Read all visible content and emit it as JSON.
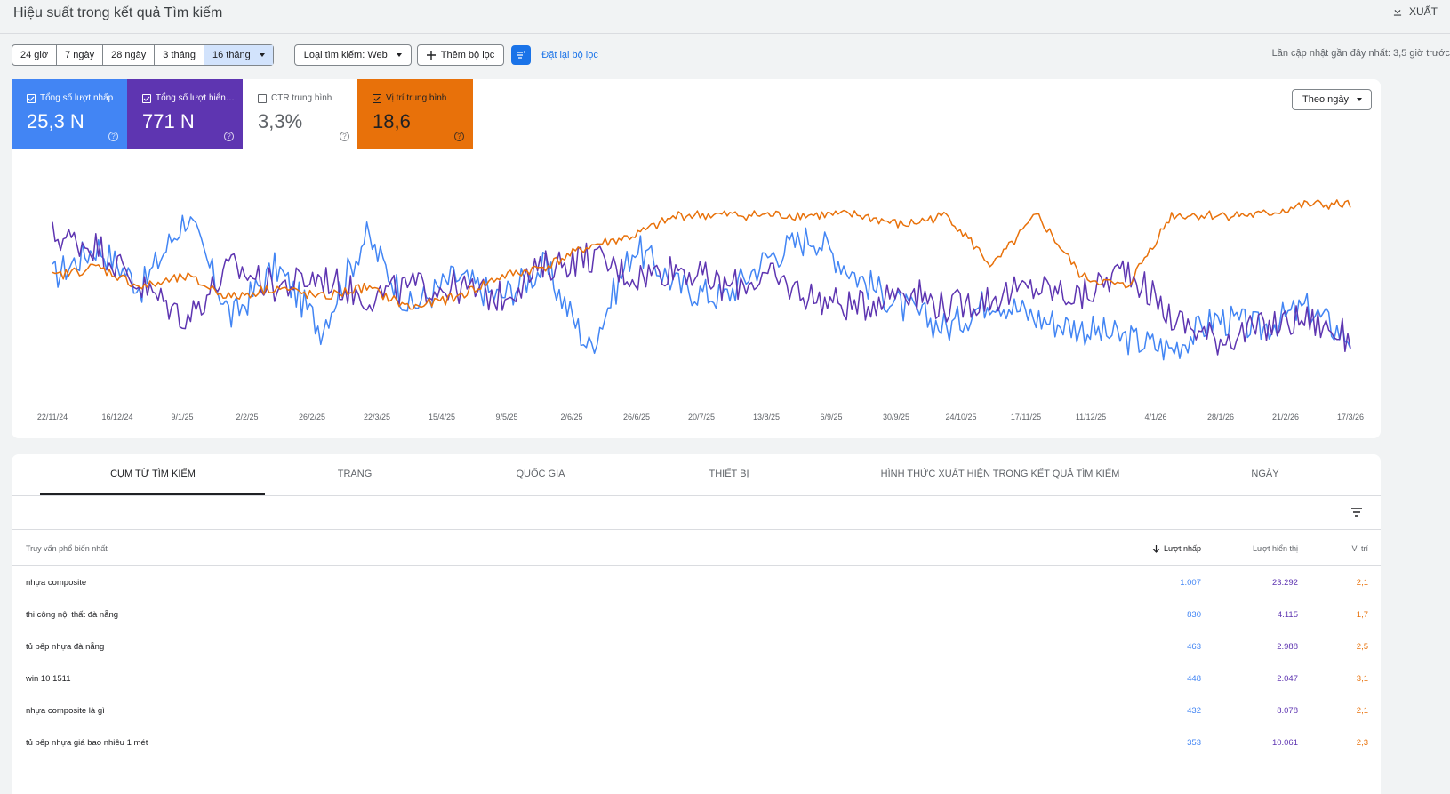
{
  "header": {
    "title": "Hiệu suất trong kết quả Tìm kiếm",
    "export_label": "XUẤT"
  },
  "filters": {
    "ranges": [
      "24 giờ",
      "7 ngày",
      "28 ngày",
      "3 tháng",
      "16 tháng"
    ],
    "active_range": "16 tháng",
    "search_type": "Loại tìm kiếm: Web",
    "add_filter": "Thêm bộ lọc",
    "reset": "Đặt lại bộ lọc",
    "last_updated": "Lần cập nhật gần đây nhất: 3,5 giờ trước"
  },
  "metrics": [
    {
      "label": "Tổng số lượt nhấp",
      "value": "25,3 N",
      "checked": true,
      "color": "#4285f4"
    },
    {
      "label": "Tổng số lượt hiển…",
      "value": "771 N",
      "checked": true,
      "color": "#5e35b1"
    },
    {
      "label": "CTR trung bình",
      "value": "3,3%",
      "checked": false,
      "color": "#ffffff"
    },
    {
      "label": "Vị trí trung bình",
      "value": "18,6",
      "checked": true,
      "color": "#e8710a"
    }
  ],
  "granularity": "Theo ngày",
  "chart_data": {
    "type": "line",
    "x_tick_labels": [
      "22/11/24",
      "16/12/24",
      "9/1/25",
      "2/2/25",
      "26/2/25",
      "22/3/25",
      "15/4/25",
      "9/5/25",
      "2/6/25",
      "26/6/25",
      "20/7/25",
      "13/8/25",
      "6/9/25",
      "30/9/25",
      "24/10/25",
      "17/11/25",
      "11/12/25",
      "4/1/26",
      "28/1/26",
      "21/2/26",
      "17/3/26"
    ],
    "series": [
      {
        "name": "Tổng số lượt nhấp",
        "color": "#4285f4",
        "anchors_relative_0_1": [
          0.55,
          0.7,
          0.5,
          0.85,
          0.35,
          0.6,
          0.3,
          0.75,
          0.4,
          0.55,
          0.45,
          0.6,
          0.2,
          0.7,
          0.5,
          0.45,
          0.65,
          0.75,
          0.55,
          0.4,
          0.3,
          0.45,
          0.35,
          0.3,
          0.25,
          0.2,
          0.35,
          0.3,
          0.4,
          0.25
        ]
      },
      {
        "name": "Tổng số lượt hiển thị",
        "color": "#5e35b1",
        "anchors_relative_0_1": [
          0.75,
          0.7,
          0.5,
          0.35,
          0.6,
          0.5,
          0.55,
          0.45,
          0.5,
          0.5,
          0.45,
          0.6,
          0.65,
          0.55,
          0.6,
          0.5,
          0.55,
          0.45,
          0.4,
          0.5,
          0.4,
          0.45,
          0.5,
          0.45,
          0.6,
          0.35,
          0.25,
          0.3,
          0.35,
          0.25
        ]
      },
      {
        "name": "Vị trí trung bình",
        "color": "#e8710a",
        "anchors_relative_0_1": [
          0.55,
          0.6,
          0.5,
          0.55,
          0.45,
          0.5,
          0.45,
          0.5,
          0.4,
          0.45,
          0.55,
          0.6,
          0.7,
          0.75,
          0.85,
          0.85,
          0.85,
          0.85,
          0.85,
          0.8,
          0.85,
          0.6,
          0.85,
          0.55,
          0.5,
          0.85,
          0.85,
          0.85,
          0.9,
          0.9
        ]
      }
    ]
  },
  "tabs": [
    "CỤM TỪ TÌM KIẾM",
    "TRANG",
    "QUỐC GIA",
    "THIẾT BỊ",
    "HÌNH THỨC XUẤT HIỆN TRONG KẾT QUẢ TÌM KIẾM",
    "NGÀY"
  ],
  "table": {
    "headers": {
      "query": "Truy vấn phổ biến nhất",
      "clicks": "Lượt nhấp",
      "impressions": "Lượt hiển thị",
      "position": "Vị trí"
    },
    "rows": [
      {
        "query": "nhựa composite",
        "clicks": "1.007",
        "impressions": "23.292",
        "position": "2,1"
      },
      {
        "query": "thi công nội thất đà nẵng",
        "clicks": "830",
        "impressions": "4.115",
        "position": "1,7"
      },
      {
        "query": "tủ bếp nhựa đà nẵng",
        "clicks": "463",
        "impressions": "2.988",
        "position": "2,5"
      },
      {
        "query": "win 10 1511",
        "clicks": "448",
        "impressions": "2.047",
        "position": "3,1"
      },
      {
        "query": "nhựa composite là gì",
        "clicks": "432",
        "impressions": "8.078",
        "position": "2,1"
      },
      {
        "query": "tủ bếp nhựa giá bao nhiêu 1 mét",
        "clicks": "353",
        "impressions": "10.061",
        "position": "2,3"
      }
    ]
  }
}
